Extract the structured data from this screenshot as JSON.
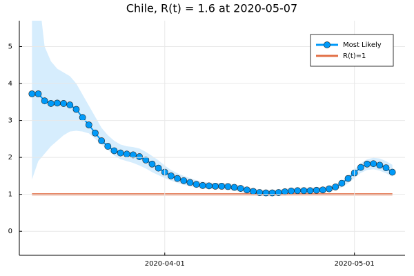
{
  "chart_data": {
    "type": "line",
    "title": "Chile, R(t) = 1.6 at 2020-05-07",
    "x": [
      "2020-03-11",
      "2020-03-12",
      "2020-03-13",
      "2020-03-14",
      "2020-03-15",
      "2020-03-16",
      "2020-03-17",
      "2020-03-18",
      "2020-03-19",
      "2020-03-20",
      "2020-03-21",
      "2020-03-22",
      "2020-03-23",
      "2020-03-24",
      "2020-03-25",
      "2020-03-26",
      "2020-03-27",
      "2020-03-28",
      "2020-03-29",
      "2020-03-30",
      "2020-03-31",
      "2020-04-01",
      "2020-04-02",
      "2020-04-03",
      "2020-04-04",
      "2020-04-05",
      "2020-04-06",
      "2020-04-07",
      "2020-04-08",
      "2020-04-09",
      "2020-04-10",
      "2020-04-11",
      "2020-04-12",
      "2020-04-13",
      "2020-04-14",
      "2020-04-15",
      "2020-04-16",
      "2020-04-17",
      "2020-04-18",
      "2020-04-19",
      "2020-04-20",
      "2020-04-21",
      "2020-04-22",
      "2020-04-23",
      "2020-04-24",
      "2020-04-25",
      "2020-04-26",
      "2020-04-27",
      "2020-04-28",
      "2020-04-29",
      "2020-04-30",
      "2020-05-01",
      "2020-05-02",
      "2020-05-03",
      "2020-05-04",
      "2020-05-05",
      "2020-05-06",
      "2020-05-07"
    ],
    "series": [
      {
        "name": "Most Likely",
        "color": "#009af9",
        "values": [
          3.72,
          3.72,
          3.53,
          3.46,
          3.47,
          3.46,
          3.42,
          3.3,
          3.08,
          2.88,
          2.66,
          2.45,
          2.3,
          2.18,
          2.12,
          2.09,
          2.07,
          2.02,
          1.93,
          1.82,
          1.71,
          1.6,
          1.5,
          1.43,
          1.37,
          1.32,
          1.27,
          1.24,
          1.23,
          1.22,
          1.22,
          1.21,
          1.19,
          1.16,
          1.12,
          1.08,
          1.05,
          1.04,
          1.04,
          1.05,
          1.07,
          1.09,
          1.1,
          1.1,
          1.1,
          1.11,
          1.12,
          1.15,
          1.2,
          1.3,
          1.43,
          1.58,
          1.73,
          1.82,
          1.83,
          1.79,
          1.72,
          1.6
        ],
        "low": [
          1.4,
          1.9,
          2.1,
          2.3,
          2.45,
          2.6,
          2.7,
          2.72,
          2.7,
          2.65,
          2.5,
          2.35,
          2.2,
          2.05,
          1.95,
          1.9,
          1.85,
          1.78,
          1.7,
          1.6,
          1.52,
          1.44,
          1.37,
          1.31,
          1.26,
          1.22,
          1.18,
          1.16,
          1.15,
          1.14,
          1.13,
          1.12,
          1.1,
          1.06,
          1.02,
          0.98,
          0.96,
          0.95,
          0.95,
          0.96,
          0.98,
          1.0,
          1.01,
          1.02,
          1.03,
          1.04,
          1.05,
          1.08,
          1.12,
          1.19,
          1.3,
          1.44,
          1.58,
          1.66,
          1.68,
          1.64,
          1.57,
          1.48
        ],
        "high": [
          7.5,
          6.5,
          5.0,
          4.6,
          4.4,
          4.3,
          4.2,
          4.0,
          3.7,
          3.4,
          3.1,
          2.8,
          2.6,
          2.45,
          2.35,
          2.3,
          2.28,
          2.24,
          2.15,
          2.04,
          1.92,
          1.78,
          1.66,
          1.57,
          1.5,
          1.44,
          1.38,
          1.34,
          1.32,
          1.31,
          1.31,
          1.3,
          1.27,
          1.24,
          1.2,
          1.16,
          1.13,
          1.12,
          1.12,
          1.13,
          1.15,
          1.17,
          1.18,
          1.18,
          1.18,
          1.19,
          1.2,
          1.23,
          1.28,
          1.36,
          1.5,
          1.68,
          1.84,
          1.95,
          1.99,
          1.97,
          1.9,
          1.8
        ],
        "band_color": "#d6edfd"
      }
    ],
    "reference": {
      "name": "R(t)=1",
      "value": 1,
      "color": "#e26f46"
    },
    "xlim": [
      "2020-03-09",
      "2020-05-09"
    ],
    "xticks": [
      "2020-04-01",
      "2020-05-01"
    ],
    "ylim": [
      -0.65,
      5.7
    ],
    "yticks": [
      0,
      1,
      2,
      3,
      4,
      5
    ],
    "grid": true,
    "legend": "top-right"
  }
}
